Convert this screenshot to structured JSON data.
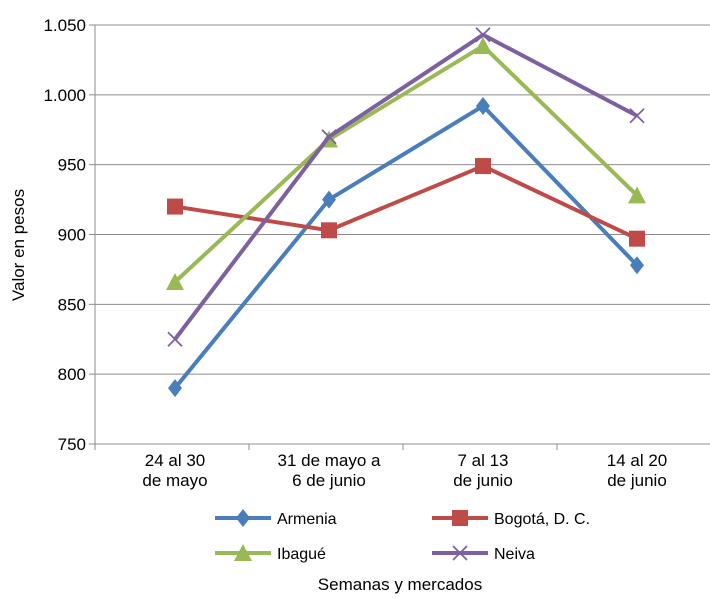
{
  "chart_data": {
    "type": "line",
    "xlabel": "Semanas y mercados",
    "ylabel": "Valor en pesos",
    "ylim": [
      750,
      1050
    ],
    "yticks": [
      750,
      800,
      850,
      900,
      950,
      1000,
      1050
    ],
    "ytick_labels": [
      "750",
      "800",
      "850",
      "900",
      "950",
      "1.000",
      "1.050"
    ],
    "categories": [
      [
        "24 al 30",
        "de mayo"
      ],
      [
        "31 de mayo a",
        "6 de junio"
      ],
      [
        "7 al 13",
        "de junio"
      ],
      [
        "14 al 20",
        "de junio"
      ]
    ],
    "grid": "horizontal",
    "legend_position": "bottom",
    "series": [
      {
        "name": "Armenia",
        "color": "#4a7ebb",
        "marker": "diamond",
        "values": [
          790,
          925,
          992,
          878
        ]
      },
      {
        "name": "Bogotá, D. C.",
        "color": "#be4b48",
        "marker": "square",
        "values": [
          920,
          903,
          949,
          897
        ]
      },
      {
        "name": "Ibagué",
        "color": "#98b954",
        "marker": "triangle",
        "values": [
          866,
          968,
          1035,
          928
        ]
      },
      {
        "name": "Neiva",
        "color": "#7d60a0",
        "marker": "x",
        "values": [
          825,
          970,
          1043,
          985
        ]
      }
    ]
  }
}
